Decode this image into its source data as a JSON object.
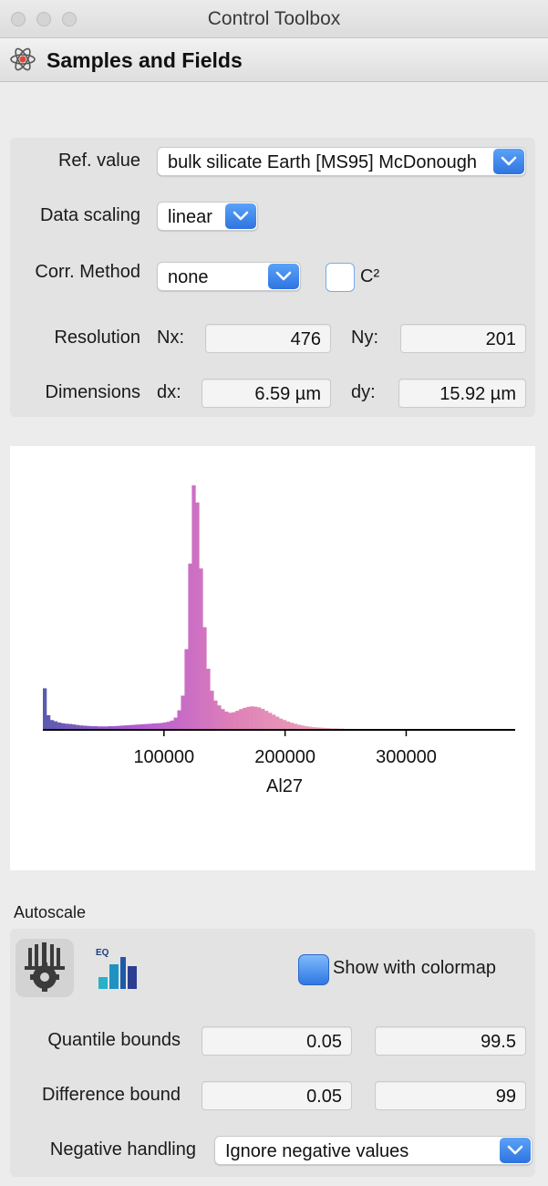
{
  "window": {
    "title": "Control Toolbox"
  },
  "section": {
    "title": "Samples and Fields",
    "icon": "atom-icon"
  },
  "reference": {
    "label": "Ref. value",
    "value": "bulk silicate Earth [MS95] McDonough"
  },
  "scaling": {
    "label": "Data scaling",
    "value": "linear"
  },
  "correction": {
    "label": "Corr. Method",
    "value": "none",
    "checkbox_label": "C²",
    "checkbox_checked": false
  },
  "resolution": {
    "label": "Resolution",
    "nx_label": "Nx:",
    "nx_value": "476",
    "ny_label": "Ny:",
    "ny_value": "201"
  },
  "dimensions": {
    "label": "Dimensions",
    "dx_label": "dx:",
    "dx_value": "6.59 µm",
    "dy_label": "dy:",
    "dy_value": "15.92 µm"
  },
  "chart_data": {
    "type": "bar",
    "title": "",
    "xlabel": "Al27",
    "ylabel": "",
    "xlim": [
      0,
      390000
    ],
    "xticks": [
      100000,
      200000,
      300000
    ],
    "xtick_labels": [
      "100000",
      "200000",
      "300000"
    ],
    "grid": false,
    "bin_width": 3000,
    "values": [
      0.17,
      0.06,
      0.04,
      0.035,
      0.03,
      0.027,
      0.025,
      0.024,
      0.022,
      0.02,
      0.018,
      0.017,
      0.016,
      0.015,
      0.015,
      0.014,
      0.014,
      0.014,
      0.015,
      0.015,
      0.016,
      0.017,
      0.018,
      0.019,
      0.02,
      0.021,
      0.022,
      0.023,
      0.024,
      0.025,
      0.026,
      0.027,
      0.028,
      0.03,
      0.033,
      0.038,
      0.05,
      0.08,
      0.14,
      0.33,
      0.68,
      1.0,
      0.93,
      0.66,
      0.42,
      0.25,
      0.16,
      0.12,
      0.1,
      0.085,
      0.075,
      0.07,
      0.072,
      0.078,
      0.085,
      0.09,
      0.094,
      0.096,
      0.095,
      0.092,
      0.086,
      0.078,
      0.07,
      0.062,
      0.054,
      0.046,
      0.04,
      0.034,
      0.029,
      0.025,
      0.021,
      0.018,
      0.015,
      0.013,
      0.011,
      0.01,
      0.009,
      0.008,
      0.007,
      0.006,
      0.006,
      0.005,
      0.005,
      0.004,
      0.004,
      0.004,
      0.003,
      0.003,
      0.003,
      0.003,
      0.002,
      0.002,
      0.002,
      0.002,
      0.002,
      0.002,
      0.002,
      0.002,
      0.002,
      0.002,
      0.002,
      0.002,
      0.002,
      0.001,
      0.001,
      0.001,
      0.001,
      0.001,
      0.001,
      0.001,
      0.001,
      0.001,
      0.001,
      0.001,
      0.001,
      0.001,
      0.001,
      0.001,
      0.001,
      0.001,
      0.001,
      0.001,
      0.001,
      0.001,
      0.001,
      0.001,
      0.001,
      0.001,
      0.001,
      0.001
    ],
    "colormap": [
      "#5a5ab0",
      "#b45ad2",
      "#de7fb8",
      "#eca4b6",
      "#f2c58c",
      "#f5d24a"
    ]
  },
  "autoscale": {
    "label": "Autoscale",
    "tool_icon": "gear-autoscale-icon",
    "eq_icon": "histogram-equalization-icon",
    "eq_text": "EQ",
    "colormap_label": "Show with colormap",
    "colormap_checked": true,
    "quantile_label": "Quantile bounds",
    "quantile_low": "0.05",
    "quantile_high": "99.5",
    "difference_label": "Difference bound",
    "difference_low": "0.05",
    "difference_high": "99",
    "negative_label": "Negative handling",
    "negative_value": "Ignore negative values"
  },
  "colors": {
    "accent": "#2f74e0",
    "panel": "#e3e3e3",
    "background": "#ececec"
  }
}
